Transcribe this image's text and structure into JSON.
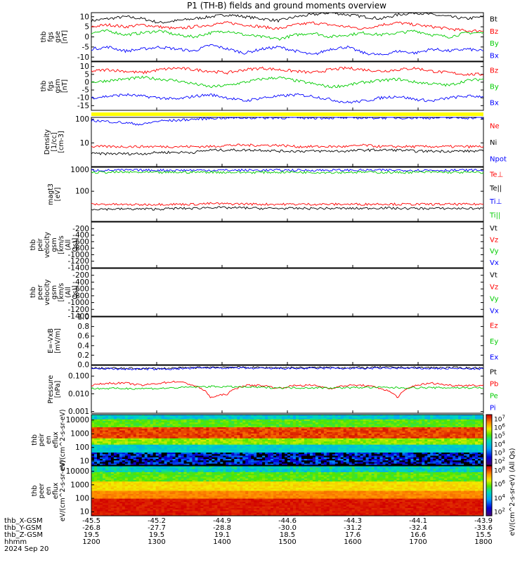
{
  "title": "P1 (TH-B) fields and ground moments overview",
  "chart_data": [
    {
      "type": "line",
      "ylabel": "thb fgs gse [nT]",
      "ylim": [
        -12,
        12
      ],
      "yticks": [
        10,
        5,
        0,
        -5,
        -10
      ],
      "series": [
        {
          "name": "Bt",
          "color": "#000000",
          "values": [
            8,
            9,
            10,
            9,
            7,
            8,
            9,
            10,
            11,
            10,
            9,
            8,
            10,
            11,
            12,
            11,
            10,
            9,
            11,
            12,
            11,
            10,
            9,
            10
          ]
        },
        {
          "name": "Bz",
          "color": "#ff0000",
          "values": [
            5,
            6,
            5,
            6,
            5,
            4,
            5,
            6,
            7,
            6,
            5,
            4,
            6,
            7,
            6,
            5,
            4,
            6,
            7,
            6,
            5,
            4,
            3,
            3
          ]
        },
        {
          "name": "By",
          "color": "#00cc00",
          "values": [
            2,
            3,
            1,
            2,
            3,
            1,
            0,
            2,
            3,
            1,
            0,
            -1,
            1,
            2,
            0,
            1,
            2,
            1,
            2,
            3,
            1,
            0,
            2,
            2
          ]
        },
        {
          "name": "Bx",
          "color": "#0000ff",
          "values": [
            -6,
            -5,
            -7,
            -6,
            -5,
            -6,
            -7,
            -4,
            -6,
            -8,
            -6,
            -5,
            -7,
            -9,
            -6,
            -5,
            -8,
            -9,
            -7,
            -8,
            -6,
            -7,
            -6,
            -7
          ]
        }
      ]
    },
    {
      "type": "line",
      "ylabel": "thb fgs gsm [nT]",
      "ylim": [
        -18,
        13
      ],
      "yticks": [
        10,
        5,
        0,
        -5,
        -10,
        -15
      ],
      "series": [
        {
          "name": "Bz",
          "color": "#ff0000",
          "values": [
            7,
            8,
            7,
            6,
            8,
            9,
            8,
            7,
            6,
            8,
            9,
            8,
            7,
            6,
            8,
            9,
            8,
            7,
            8,
            9,
            7,
            6,
            5,
            5
          ]
        },
        {
          "name": "By",
          "color": "#00cc00",
          "values": [
            0,
            1,
            2,
            3,
            2,
            1,
            -1,
            -3,
            -2,
            0,
            2,
            3,
            1,
            -1,
            -3,
            -2,
            0,
            1,
            2,
            0,
            -1,
            -2,
            1,
            2
          ]
        },
        {
          "name": "Bx",
          "color": "#0000ff",
          "values": [
            -10,
            -9,
            -8,
            -9,
            -10,
            -11,
            -9,
            -8,
            -10,
            -12,
            -10,
            -9,
            -8,
            -9,
            -11,
            -13,
            -12,
            -10,
            -9,
            -11,
            -12,
            -10,
            -9,
            -9
          ]
        }
      ]
    },
    {
      "type": "line",
      "ylabel": "Density [1/cc] [cm-3]",
      "scale": "log",
      "ylim": [
        1,
        120
      ],
      "yticks": [
        100,
        10
      ],
      "series": [
        {
          "name": "Ne",
          "color": "#ff0000",
          "values": [
            7,
            7,
            7,
            7,
            7,
            7,
            7,
            7,
            8,
            8,
            8,
            8,
            7,
            7,
            7,
            7,
            8,
            7,
            7,
            7,
            7,
            7,
            7,
            7
          ]
        },
        {
          "name": "Ni",
          "color": "#000000",
          "values": [
            3.5,
            3.5,
            3.5,
            3.5,
            4,
            4,
            4,
            5,
            5,
            5,
            5,
            4.5,
            4.5,
            4.5,
            4.5,
            4.5,
            5,
            5,
            5,
            4.5,
            4.5,
            4.5,
            4.5,
            4.5
          ]
        },
        {
          "name": "Npot",
          "color": "#0000ff",
          "values": [
            90,
            80,
            70,
            60,
            85,
            90,
            100,
            110,
            115,
            115,
            115,
            115,
            115,
            115,
            115,
            115,
            115,
            115,
            115,
            115,
            115,
            115,
            115,
            115
          ]
        }
      ]
    },
    {
      "type": "line",
      "ylabel": "magt3 [eV]",
      "scale": "log",
      "ylim": [
        4,
        1300
      ],
      "yticks": [
        1000,
        100
      ],
      "series": [
        {
          "name": "Te⊥",
          "color": "#ff0000",
          "values": [
            25,
            25,
            24,
            24,
            25,
            25,
            25,
            27,
            26,
            26,
            25,
            25,
            25,
            25,
            25,
            25,
            25,
            26,
            25,
            25,
            25,
            25,
            25,
            25
          ]
        },
        {
          "name": "Te||",
          "color": "#000000",
          "values": [
            15,
            15,
            15,
            15,
            15,
            16,
            16,
            18,
            17,
            17,
            16,
            16,
            16,
            16,
            16,
            16,
            16,
            17,
            16,
            16,
            16,
            16,
            16,
            16
          ]
        },
        {
          "name": "Ti⊥",
          "color": "#0000ff",
          "values": [
            950,
            950,
            950,
            950,
            950,
            950,
            950,
            950,
            950,
            950,
            950,
            950,
            950,
            950,
            950,
            950,
            950,
            950,
            950,
            950,
            950,
            950,
            950,
            950
          ]
        },
        {
          "name": "Ti||",
          "color": "#00cc00",
          "values": [
            750,
            760,
            770,
            750,
            740,
            760,
            770,
            780,
            760,
            750,
            760,
            770,
            770,
            760,
            750,
            760,
            770,
            760,
            750,
            760,
            770,
            760,
            750,
            750
          ]
        }
      ]
    },
    {
      "type": "line",
      "ylabel": "thb peir velocity gsm [km/s (All Qs)]",
      "ylim": [
        -1400,
        0
      ],
      "yticks": [
        -200,
        -400,
        -600,
        -800,
        -1000,
        -1200,
        -1400
      ],
      "series": [
        {
          "name": "Vt",
          "color": "#000000",
          "values": []
        },
        {
          "name": "Vz",
          "color": "#ff0000",
          "values": []
        },
        {
          "name": "Vy",
          "color": "#00cc00",
          "values": []
        },
        {
          "name": "Vx",
          "color": "#0000ff",
          "values": []
        }
      ]
    },
    {
      "type": "line",
      "ylabel": "thb peer velocity gsm [km/s (All Qs)]",
      "ylim": [
        -1400,
        0
      ],
      "yticks": [
        -200,
        -400,
        -600,
        -800,
        -1000,
        -1200,
        -1400
      ],
      "series": [
        {
          "name": "Vt",
          "color": "#000000",
          "values": []
        },
        {
          "name": "Vz",
          "color": "#ff0000",
          "values": []
        },
        {
          "name": "Vy",
          "color": "#00cc00",
          "values": []
        },
        {
          "name": "Vx",
          "color": "#0000ff",
          "values": []
        }
      ]
    },
    {
      "type": "line",
      "ylabel": "E=-VxB [mV/m]",
      "ylim": [
        0,
        1.0
      ],
      "yticks": [
        1.0,
        0.8,
        0.6,
        0.4,
        0.2,
        0.0
      ],
      "series": [
        {
          "name": "Ez",
          "color": "#ff0000",
          "values": []
        },
        {
          "name": "Ey",
          "color": "#00cc00",
          "values": []
        },
        {
          "name": "Ex",
          "color": "#0000ff",
          "values": []
        }
      ]
    },
    {
      "type": "line",
      "ylabel": "Pressure [nPa]",
      "scale": "log",
      "ylim": [
        0.0008,
        0.4
      ],
      "yticks": [
        0.1,
        0.01,
        0.001
      ],
      "yticklabels": [
        "0.100",
        "0.010",
        "0.001"
      ],
      "series": [
        {
          "name": "Pt",
          "color": "#000000",
          "values": [
            0.28,
            0.28,
            0.27,
            0.27,
            0.27,
            0.28,
            0.3,
            0.32,
            0.32,
            0.31,
            0.3,
            0.3,
            0.3,
            0.3,
            0.31,
            0.3,
            0.3,
            0.31,
            0.31,
            0.3,
            0.3,
            0.3,
            0.29,
            0.29
          ]
        },
        {
          "name": "Pb",
          "color": "#ff0000",
          "values": [
            0.03,
            0.04,
            0.04,
            0.03,
            0.04,
            0.05,
            0.03,
            0.006,
            0.01,
            0.03,
            0.03,
            0.02,
            0.03,
            0.03,
            0.02,
            0.03,
            0.03,
            0.02,
            0.006,
            0.03,
            0.04,
            0.03,
            0.03,
            0.03
          ]
        },
        {
          "name": "Pe",
          "color": "#00cc00",
          "values": [
            0.02,
            0.02,
            0.02,
            0.02,
            0.02,
            0.022,
            0.024,
            0.026,
            0.025,
            0.024,
            0.023,
            0.022,
            0.022,
            0.022,
            0.022,
            0.022,
            0.023,
            0.023,
            0.022,
            0.022,
            0.022,
            0.022,
            0.022,
            0.022
          ]
        },
        {
          "name": "Pi",
          "color": "#0000ff",
          "values": [
            0.26,
            0.26,
            0.25,
            0.25,
            0.25,
            0.26,
            0.28,
            0.29,
            0.29,
            0.28,
            0.27,
            0.27,
            0.27,
            0.27,
            0.28,
            0.27,
            0.27,
            0.28,
            0.28,
            0.27,
            0.27,
            0.27,
            0.26,
            0.26
          ]
        }
      ]
    },
    {
      "type": "heatmap",
      "ylabel": "thb peir en eflux eV/(cm^2-s-sr-eV)",
      "scale": "log",
      "ylim": [
        5,
        25000
      ],
      "yticks": [
        10000,
        1000,
        100,
        10
      ],
      "colorbar": {
        "label": "eV/(cm^2-s-sr-eV) (All Qs)",
        "ticks": [
          "10^7",
          "10^6",
          "10^5",
          "10^4",
          "10^3",
          "10^2"
        ]
      }
    },
    {
      "type": "heatmap",
      "ylabel": "thb peer en eflux eV/(cm^2-s-sr-eV)",
      "scale": "log",
      "ylim": [
        5,
        25000
      ],
      "yticks": [
        10000,
        1000,
        100,
        10
      ],
      "colorbar": {
        "label": "eV/(cm^2-s-sr-eV)",
        "ticks": [
          "10^8",
          "10^6",
          "10^4",
          "10^2"
        ]
      }
    }
  ],
  "x_axis": {
    "rows": [
      {
        "label": "thb_X-GSM",
        "values": [
          "-45.5",
          "-45.2",
          "-44.9",
          "-44.6",
          "-44.3",
          "-44.1",
          "-43.9"
        ]
      },
      {
        "label": "thb_Y-GSM",
        "values": [
          "-26.8",
          "-27.7",
          "-28.8",
          "-30.0",
          "-31.2",
          "-32.4",
          "-33.6"
        ]
      },
      {
        "label": "thb_Z-GSM",
        "values": [
          "19.5",
          "19.5",
          "19.1",
          "18.5",
          "17.6",
          "16.6",
          "15.5"
        ]
      },
      {
        "label": "hhmm",
        "values": [
          "1200",
          "1300",
          "1400",
          "1500",
          "1600",
          "1700",
          "1800"
        ]
      }
    ],
    "date": "2024 Sep 20"
  }
}
